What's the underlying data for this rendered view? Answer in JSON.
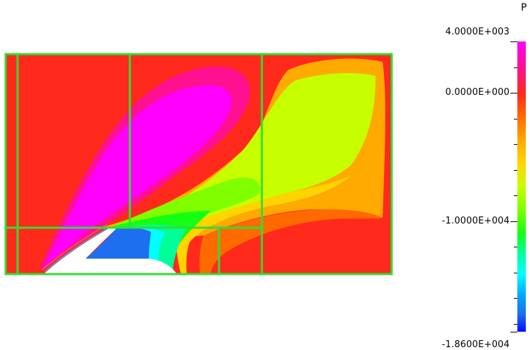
{
  "chart_data": {
    "type": "heatmap",
    "variable_label": "P",
    "colorbar": {
      "max": 4000,
      "min": -18600,
      "tick_labels": [
        {
          "value": 4000,
          "text": "4.0000E+003"
        },
        {
          "value": 0,
          "text": "0.0000E+000"
        },
        {
          "value": -10000,
          "text": "-1.0000E+004"
        },
        {
          "value": -18600,
          "text": "-1.8600E+004"
        }
      ],
      "colormap": [
        "#ff00ff",
        "#ff1090",
        "#ff2a1c",
        "#ff6a00",
        "#ffaa00",
        "#ffd400",
        "#c8ff00",
        "#7fff00",
        "#14ff14",
        "#00ff99",
        "#00ffff",
        "#00aaff",
        "#1e6ef0",
        "#0010ff"
      ]
    },
    "regions": [
      {
        "name": "background",
        "approx_value": 1500,
        "color": "#ff2a1c"
      },
      {
        "name": "high-pressure-lobe",
        "approx_value": 4000,
        "color": "#ff00ff"
      },
      {
        "name": "inner-ring",
        "approx_value": 2800,
        "color": "#ff1090"
      },
      {
        "name": "right-plume",
        "approx_value": -2200,
        "color": "#ffaa00"
      },
      {
        "name": "yellow-green-zone",
        "approx_value": -4500,
        "color": "#c8ff00"
      },
      {
        "name": "green-tongue",
        "approx_value": -7000,
        "color": "#7fff00"
      },
      {
        "name": "low-pressure-core",
        "approx_value": -14000,
        "color": "#1e6ef0"
      }
    ],
    "mesh_color": "#33dd33"
  }
}
